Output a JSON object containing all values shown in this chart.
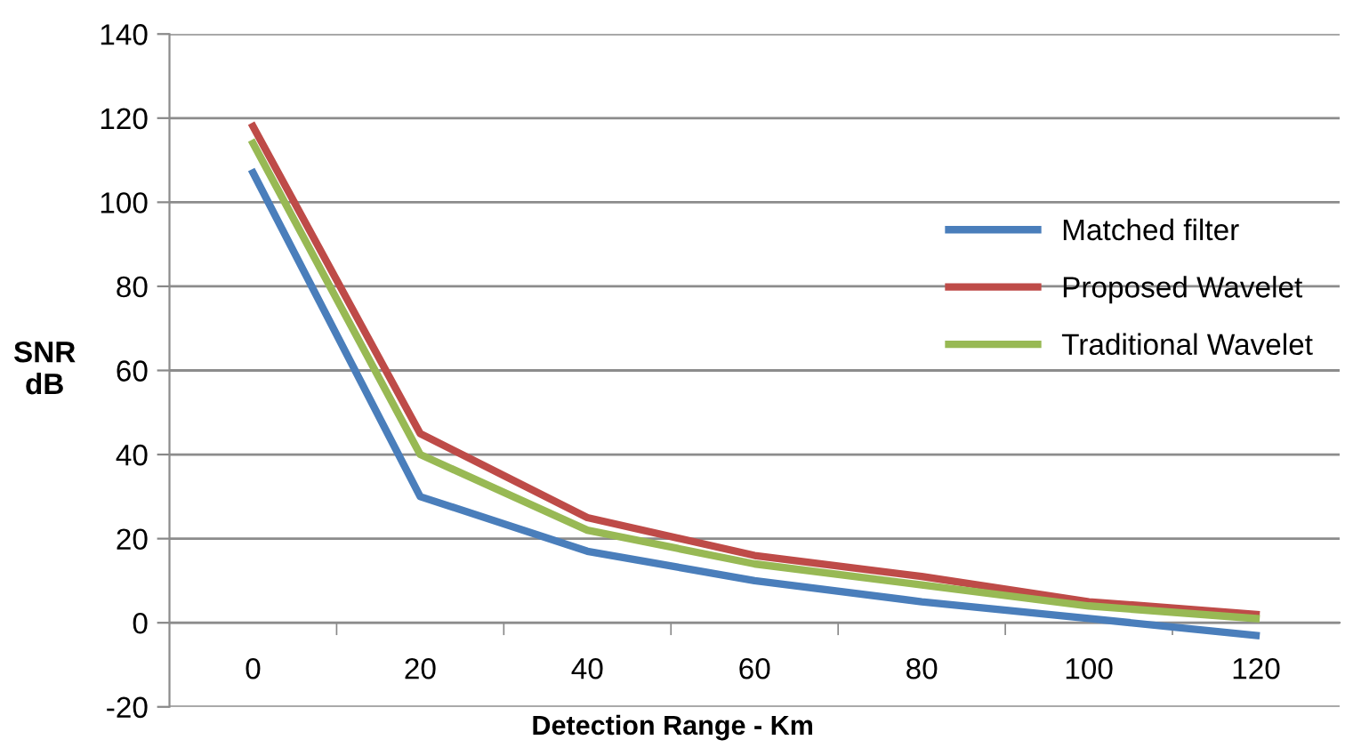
{
  "chart_data": {
    "type": "line",
    "xlabel": "Detection Range - Km",
    "ylabel": "SNR\ndB",
    "categories": [
      "0",
      "20",
      "40",
      "60",
      "80",
      "100",
      "120"
    ],
    "series": [
      {
        "name": "Matched filter",
        "color": "#4a7ebb",
        "values": [
          107,
          30,
          17,
          10,
          5,
          1,
          -3
        ]
      },
      {
        "name": "Proposed Wavelet",
        "color": "#be4b48",
        "values": [
          118,
          45,
          25,
          16,
          11,
          5,
          2
        ]
      },
      {
        "name": "Traditional Wavelet",
        "color": "#98b954",
        "values": [
          114,
          40,
          22,
          14,
          9,
          4,
          1
        ]
      }
    ],
    "ylim": [
      -20,
      140
    ],
    "yticks": [
      -20,
      0,
      20,
      40,
      60,
      80,
      100,
      120,
      140
    ],
    "grid": "y",
    "legend": "right",
    "marker": "none",
    "line_style": "solid"
  }
}
